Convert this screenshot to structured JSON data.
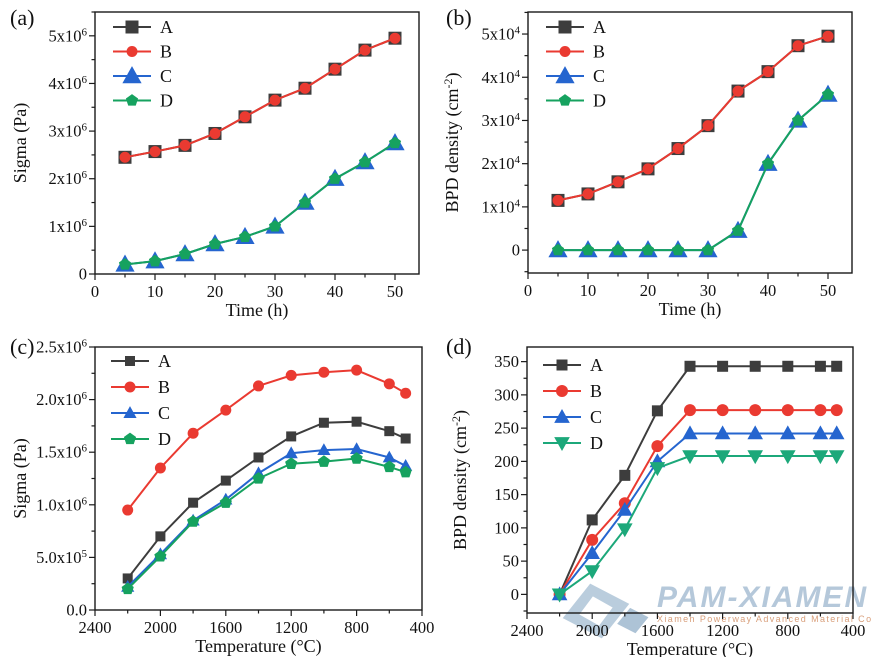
{
  "figure": {
    "background": "#ffffff",
    "panel_labels": [
      "(a)",
      "(b)",
      "(c)",
      "(d)"
    ]
  },
  "watermark": {
    "logo": "diamond-icon",
    "brand": "PAM-XIAMEN",
    "subtext": "Xiamen Powerway Advanced Material Co.,Ltd",
    "brand_color": "#b2c6d9",
    "logo_color": "#b7cbdc",
    "subtext_color": "#d79a74"
  },
  "chart_data": [
    {
      "id": "a",
      "panel_label": "(a)",
      "type": "line",
      "xlabel": "Time (h)",
      "ylabel": "Sigma (Pa)",
      "xlim": [
        0,
        54
      ],
      "ylim": [
        0,
        5500000
      ],
      "xticks": [
        0,
        10,
        20,
        30,
        40,
        50
      ],
      "xtick_labels": [
        "0",
        "10",
        "20",
        "30",
        "40",
        "50"
      ],
      "yticks": [
        0,
        1000000,
        2000000,
        3000000,
        4000000,
        5000000
      ],
      "ytick_labels": [
        "0",
        "1x10^{6}",
        "2x10^{6}",
        "3x10^{6}",
        "4x10^{6}",
        "5x10^{6}"
      ],
      "x_minor_step": 5,
      "y_minor_step": 500000,
      "grid": false,
      "legend_position": "top-left",
      "x": [
        5,
        10,
        15,
        20,
        25,
        30,
        35,
        40,
        45,
        50
      ],
      "series": [
        {
          "name": "A",
          "color": "#3d3d3d",
          "marker": "square",
          "marker_size": 13,
          "values": [
            2450000,
            2570000,
            2700000,
            2950000,
            3300000,
            3650000,
            3900000,
            4300000,
            4700000,
            4950000
          ]
        },
        {
          "name": "B",
          "color": "#ea3a31",
          "marker": "circle",
          "marker_size": 11,
          "values": [
            2450000,
            2570000,
            2700000,
            2950000,
            3300000,
            3650000,
            3900000,
            4300000,
            4700000,
            4950000
          ]
        },
        {
          "name": "C",
          "color": "#2565cf",
          "marker": "triangle-up",
          "marker_size": 16,
          "values": [
            200000,
            270000,
            420000,
            630000,
            780000,
            1000000,
            1500000,
            2000000,
            2350000,
            2750000
          ]
        },
        {
          "name": "D",
          "color": "#16a25f",
          "marker": "pentagon",
          "marker_size": 10,
          "values": [
            200000,
            270000,
            420000,
            630000,
            780000,
            1000000,
            1500000,
            2000000,
            2350000,
            2750000
          ]
        }
      ]
    },
    {
      "id": "b",
      "panel_label": "(b)",
      "type": "line",
      "xlabel": "Time (h)",
      "ylabel": "BPD density (cm^{-2})",
      "xlim": [
        0,
        54
      ],
      "ylim": [
        -5300,
        55100
      ],
      "xticks": [
        0,
        10,
        20,
        30,
        40,
        50
      ],
      "xtick_labels": [
        "0",
        "10",
        "20",
        "30",
        "40",
        "50"
      ],
      "yticks": [
        0,
        10000,
        20000,
        30000,
        40000,
        50000
      ],
      "ytick_labels": [
        "0",
        "1x10^{4}",
        "2x10^{4}",
        "3x10^{4}",
        "4x10^{4}",
        "5x10^{4}"
      ],
      "x_minor_step": 5,
      "y_minor_step": 5000,
      "grid": false,
      "legend_position": "top-left",
      "x": [
        5,
        10,
        15,
        20,
        25,
        30,
        35,
        40,
        45,
        50
      ],
      "series": [
        {
          "name": "A",
          "color": "#3d3d3d",
          "marker": "square",
          "marker_size": 13,
          "values": [
            11500,
            13000,
            15800,
            18800,
            23500,
            28800,
            36800,
            41300,
            47300,
            49500
          ]
        },
        {
          "name": "B",
          "color": "#ea3a31",
          "marker": "circle",
          "marker_size": 11,
          "values": [
            11500,
            13000,
            15800,
            18800,
            23500,
            28800,
            36800,
            41300,
            47300,
            49500
          ]
        },
        {
          "name": "C",
          "color": "#2565cf",
          "marker": "triangle-up",
          "marker_size": 16,
          "values": [
            0,
            0,
            0,
            0,
            0,
            0,
            4500,
            20000,
            30000,
            36000
          ]
        },
        {
          "name": "D",
          "color": "#16a25f",
          "marker": "pentagon",
          "marker_size": 10,
          "values": [
            0,
            0,
            0,
            0,
            0,
            0,
            4500,
            20000,
            30000,
            36000
          ]
        }
      ]
    },
    {
      "id": "c",
      "panel_label": "(c)",
      "type": "line",
      "xlabel": "Temperature (°C)",
      "ylabel": "Sigma (Pa)",
      "xlim": [
        2400,
        400
      ],
      "ylim": [
        0,
        2500000
      ],
      "xticks": [
        2400,
        2000,
        1600,
        1200,
        800,
        400
      ],
      "xtick_labels": [
        "2400",
        "2000",
        "1600",
        "1200",
        "800",
        "400"
      ],
      "yticks": [
        0,
        500000,
        1000000,
        1500000,
        2000000,
        2500000
      ],
      "ytick_labels": [
        "0.0",
        "5.0x10^{5}",
        "1.0x10^{6}",
        "1.5x10^{6}",
        "2.0x10^{6}",
        "2.5x10^{6}"
      ],
      "x_minor_step": 200,
      "y_minor_step": 250000,
      "grid": false,
      "legend_position": "top-left",
      "x": [
        2200,
        2000,
        1800,
        1600,
        1400,
        1200,
        1000,
        800,
        600,
        500
      ],
      "series": [
        {
          "name": "A",
          "color": "#3d3d3d",
          "marker": "square",
          "marker_size": 10,
          "values": [
            300000,
            700000,
            1020000,
            1230000,
            1450000,
            1650000,
            1780000,
            1790000,
            1700000,
            1630000
          ]
        },
        {
          "name": "B",
          "color": "#ea3a31",
          "marker": "circle",
          "marker_size": 11,
          "values": [
            950000,
            1350000,
            1680000,
            1900000,
            2130000,
            2230000,
            2260000,
            2280000,
            2150000,
            2060000
          ]
        },
        {
          "name": "C",
          "color": "#2565cf",
          "marker": "triangle-up",
          "marker_size": 11,
          "values": [
            220000,
            530000,
            850000,
            1050000,
            1300000,
            1490000,
            1520000,
            1530000,
            1450000,
            1370000
          ]
        },
        {
          "name": "D",
          "color": "#16a25f",
          "marker": "pentagon",
          "marker_size": 10,
          "values": [
            200000,
            510000,
            840000,
            1020000,
            1250000,
            1390000,
            1410000,
            1440000,
            1360000,
            1310000
          ]
        }
      ]
    },
    {
      "id": "d",
      "panel_label": "(d)",
      "type": "line",
      "xlabel": "Temperature (°C)",
      "ylabel": "BPD density (cm^{-2})",
      "xlim": [
        2400,
        400
      ],
      "ylim": [
        -28,
        372
      ],
      "xticks": [
        2400,
        2000,
        1600,
        1200,
        800,
        400
      ],
      "xtick_labels": [
        "2400",
        "2000",
        "1600",
        "1200",
        "800",
        "400"
      ],
      "yticks": [
        0,
        50,
        100,
        150,
        200,
        250,
        300,
        350
      ],
      "ytick_labels": [
        "0",
        "50",
        "100",
        "150",
        "200",
        "250",
        "300",
        "350"
      ],
      "x_minor_step": 200,
      "y_minor_step": 25,
      "grid": false,
      "legend_position": "top-left",
      "x": [
        2200,
        2000,
        1800,
        1600,
        1400,
        1200,
        1000,
        800,
        600,
        500
      ],
      "series": [
        {
          "name": "A",
          "color": "#3d3d3d",
          "marker": "square",
          "marker_size": 11,
          "values": [
            0,
            112,
            179,
            276,
            343,
            343,
            343,
            343,
            343,
            343
          ]
        },
        {
          "name": "B",
          "color": "#ea3a31",
          "marker": "circle",
          "marker_size": 12,
          "values": [
            0,
            82,
            137,
            223,
            277,
            277,
            277,
            277,
            277,
            277
          ]
        },
        {
          "name": "C",
          "color": "#2565cf",
          "marker": "triangle-up",
          "marker_size": 13,
          "values": [
            0,
            62,
            127,
            200,
            242,
            242,
            242,
            242,
            242,
            242
          ]
        },
        {
          "name": "D",
          "color": "#1ca87a",
          "marker": "triangle-down",
          "marker_size": 13,
          "values": [
            0,
            35,
            98,
            190,
            208,
            208,
            208,
            208,
            208,
            208
          ]
        }
      ]
    }
  ]
}
